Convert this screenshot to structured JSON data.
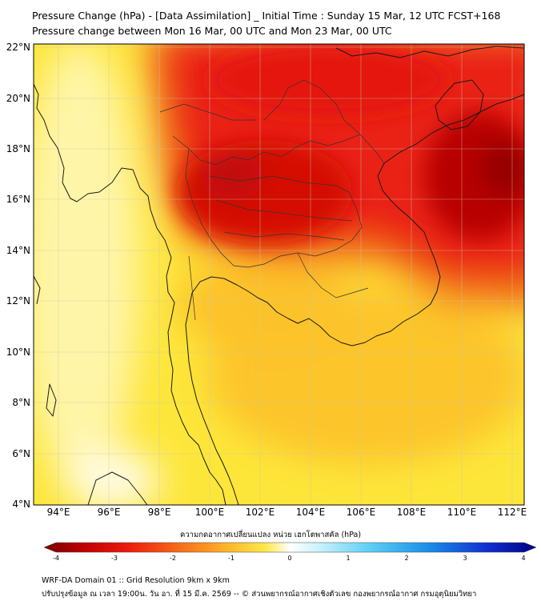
{
  "title": {
    "line1": "Pressure Change (hPa) - [Data Assimilation] _ Initial Time : Sunday 15 Mar, 12 UTC FCST+168",
    "line2": "Pressure change between Mon 16 Mar, 00 UTC and Mon 23 Mar, 00 UTC"
  },
  "map": {
    "lat_labels": [
      "22°N",
      "20°N",
      "18°N",
      "16°N",
      "14°N",
      "12°N",
      "10°N",
      "8°N",
      "6°N",
      "4°N"
    ],
    "lon_labels": [
      "94°E",
      "96°E",
      "98°E",
      "100°E",
      "102°E",
      "104°E",
      "106°E",
      "108°E",
      "110°E",
      "112°E"
    ],
    "lat_range": [
      4,
      22
    ],
    "lon_range": [
      93,
      112.5
    ],
    "field": "pressure change (hPa)",
    "region_values": {
      "northeast_max": -3.8,
      "central_core": -3.0,
      "gulf_of_thailand": -1.5,
      "south_china_sea": -1.3,
      "andaman_sea": -0.8,
      "west_min": -0.2
    }
  },
  "colorbar": {
    "title": "ความกดอากาศเปลี่ยนแปลง หน่วย เฮกโตพาสคัล (hPa)",
    "ticks": [
      "-4",
      "-3",
      "-2",
      "-1",
      "0",
      "1",
      "2",
      "3",
      "4"
    ],
    "range": [
      -4,
      4
    ],
    "colors": {
      "dark_red": "#8b0000",
      "red": "#e8120a",
      "orange": "#f7921e",
      "yellow": "#fde93c",
      "pale": "#fffbd6",
      "cyan": "#36b8f0",
      "blue": "#1122cc",
      "navy": "#000080"
    }
  },
  "footer": {
    "line1": "WRF-DA Domain 01 :: Grid Resolution 9km x 9km",
    "line2": "ปรับปรุงข้อมูล ณ เวลา 19:00น. วัน อา. ที่ 15 มี.ค. 2569 -- © ส่วนพยากรณ์อากาศเชิงตัวเลข กองพยากรณ์อากาศ กรมอุตุนิยมวิทยา"
  }
}
